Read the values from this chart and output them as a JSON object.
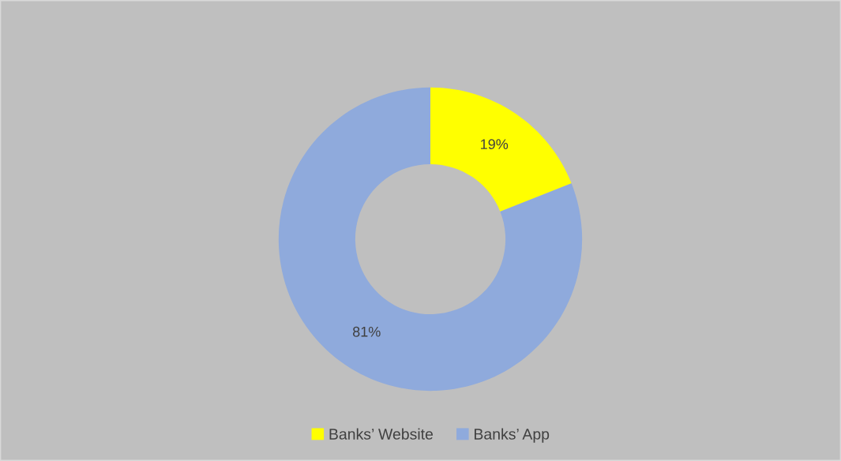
{
  "chart_data": {
    "type": "donut",
    "categories": [
      "Banks’ Website",
      "Banks’ App"
    ],
    "values": [
      19,
      81
    ],
    "colors": [
      "#ffff00",
      "#8faadc"
    ],
    "value_labels": [
      "19%",
      "81%"
    ],
    "legend": "bottom"
  }
}
